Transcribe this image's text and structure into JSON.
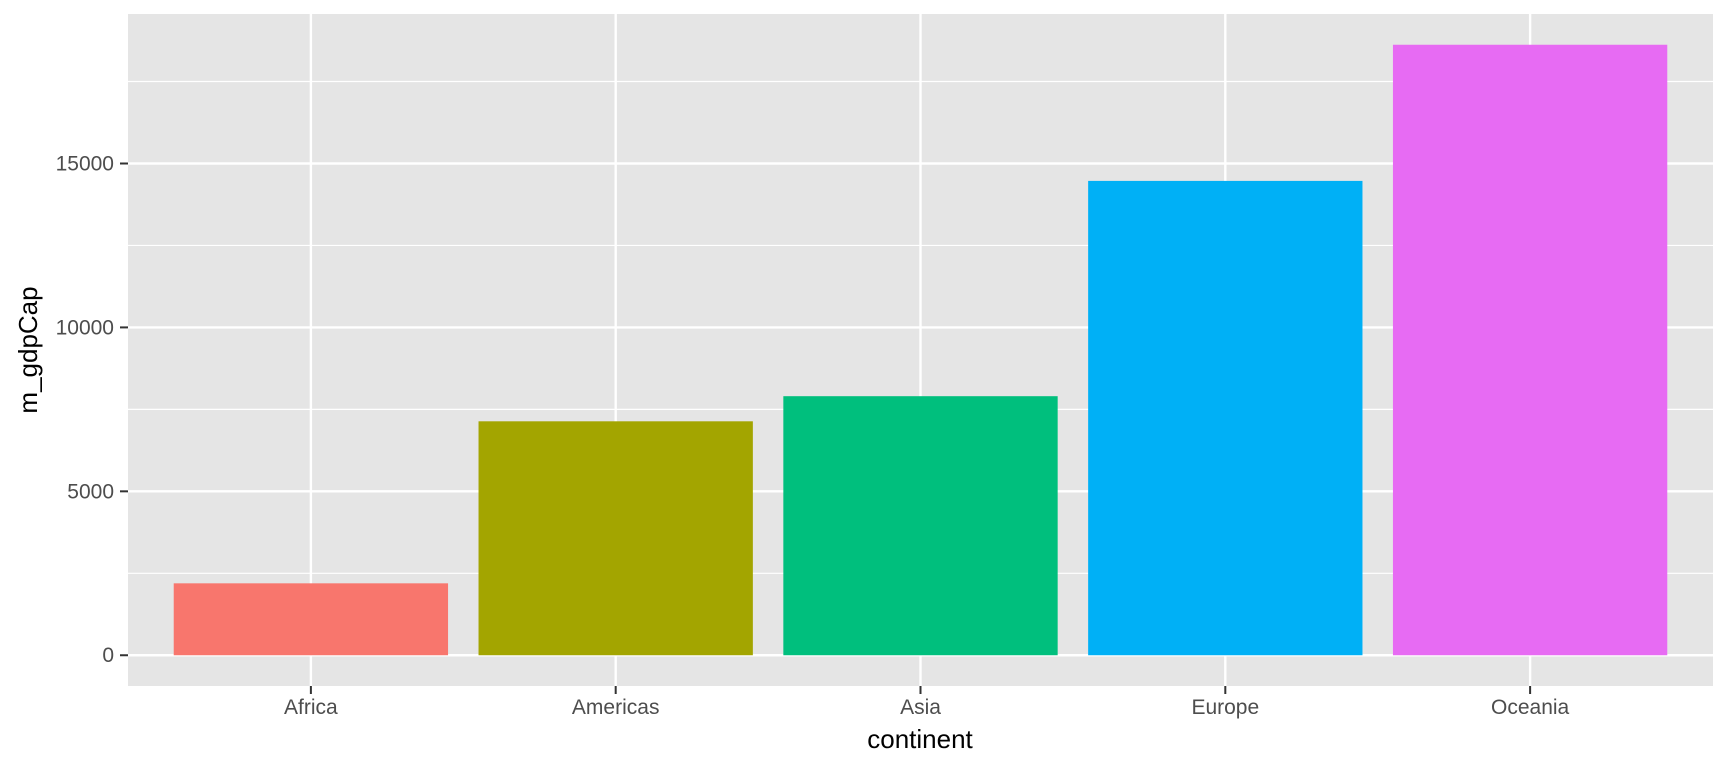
{
  "chart_data": {
    "type": "bar",
    "title": "",
    "xlabel": "continent",
    "ylabel": "m_gdpCap",
    "categories": [
      "Africa",
      "Americas",
      "Asia",
      "Europe",
      "Oceania"
    ],
    "values": [
      2194,
      7136,
      7902,
      14469,
      18622
    ],
    "colors": [
      "#F8766D",
      "#A3A500",
      "#00BF7D",
      "#00B0F6",
      "#E76BF3"
    ],
    "yticks": [
      0,
      5000,
      10000,
      15000
    ],
    "ylim": [
      -938,
      19560
    ],
    "grid": true,
    "legend": "none",
    "panel_background": "#E5E5E5",
    "grid_color": "#FFFFFF"
  }
}
